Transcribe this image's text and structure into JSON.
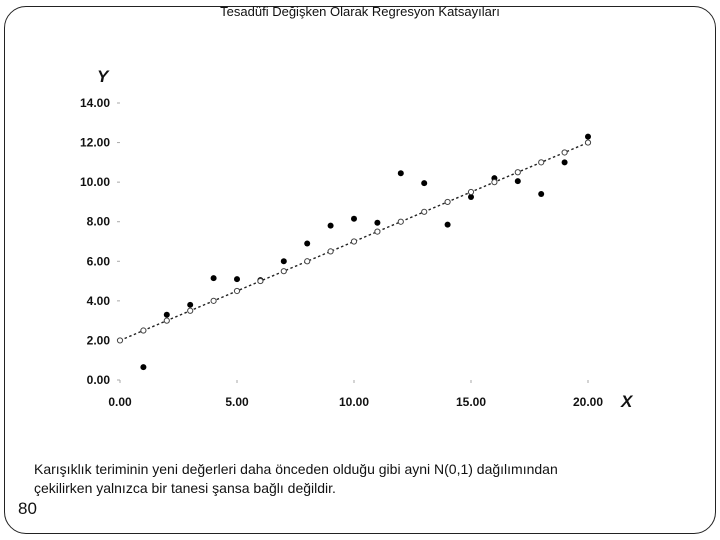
{
  "slide": {
    "title": "Tesadüfi Değişken Olarak Regresyon Katsayıları",
    "caption_line1": "Karışıklık teriminin yeni değerleri daha önceden olduğu gibi ayni N(0,1) dağılımından",
    "caption_line2": "çekilirken yalnızca bir tanesi şansa bağlı değildir.",
    "page_number": "80"
  },
  "chart_data": {
    "type": "scatter",
    "xlabel": "X",
    "ylabel": "Y",
    "xlim": [
      0,
      20
    ],
    "ylim": [
      0,
      14
    ],
    "x_ticks": [
      "0.00",
      "5.00",
      "10.00",
      "15.00",
      "20.00"
    ],
    "y_ticks": [
      "0.00",
      "2.00",
      "4.00",
      "6.00",
      "8.00",
      "10.00",
      "12.00",
      "14.00"
    ],
    "grid": false,
    "series": [
      {
        "marker": "filled",
        "color": "#000000",
        "x": [
          1,
          2,
          3,
          4,
          5,
          6,
          7,
          8,
          9,
          10,
          11,
          12,
          13,
          14,
          15,
          16,
          17,
          18,
          19,
          20
        ],
        "y": [
          0.65,
          3.3,
          3.8,
          5.15,
          5.1,
          5.05,
          6.0,
          6.9,
          7.8,
          8.15,
          7.95,
          10.45,
          9.95,
          7.85,
          9.25,
          10.2,
          10.05,
          9.4,
          11.0,
          12.3
        ]
      },
      {
        "marker": "open",
        "color": "#444444",
        "x": [
          0,
          1,
          2,
          3,
          4,
          5,
          6,
          7,
          8,
          9,
          10,
          11,
          12,
          13,
          14,
          15,
          16,
          17,
          18,
          19,
          20
        ],
        "y": [
          2.0,
          2.5,
          3.0,
          3.5,
          4.0,
          4.5,
          5.0,
          5.5,
          6.0,
          6.5,
          7.0,
          7.5,
          8.0,
          8.5,
          9.0,
          9.5,
          10.0,
          10.5,
          11.0,
          11.5,
          12.0
        ]
      }
    ],
    "trend_line": {
      "style": "dotted",
      "x": [
        0,
        20
      ],
      "y": [
        2.0,
        12.0
      ]
    }
  }
}
